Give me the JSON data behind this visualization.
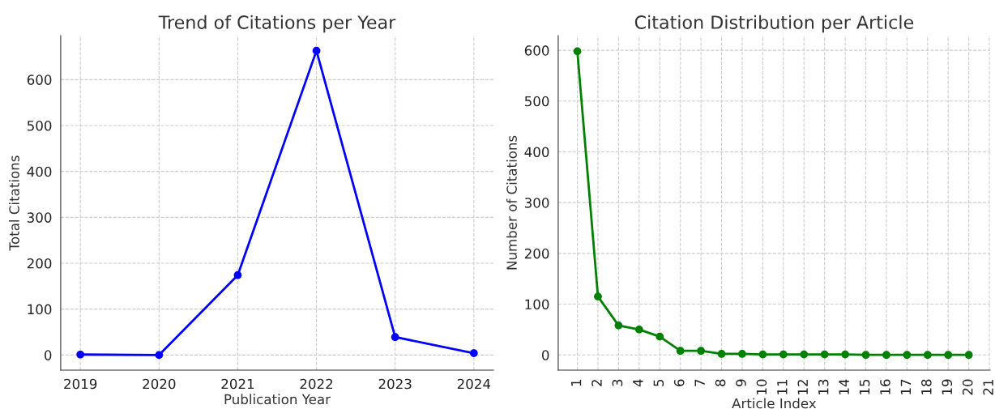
{
  "chart_data": [
    {
      "type": "line",
      "title": "Trend of Citations per Year",
      "xlabel": "Publication Year",
      "ylabel": "Total Citations",
      "x": [
        2019,
        2020,
        2021,
        2022,
        2023,
        2024
      ],
      "series": [
        {
          "color": "#0000ff",
          "values": [
            1,
            0,
            174,
            663,
            39,
            4
          ]
        }
      ],
      "xlim": [
        2018.75,
        2024.25
      ],
      "xticks": [
        2019,
        2020,
        2021,
        2022,
        2023,
        2024
      ],
      "ylim": [
        -33,
        696
      ],
      "yticks": [
        0,
        100,
        200,
        300,
        400,
        500,
        600
      ],
      "grid": true,
      "marker": "circle",
      "line_style": "solid"
    },
    {
      "type": "line",
      "title": "Citation Distribution per Article",
      "xlabel": "Article Index",
      "ylabel": "Number of Citations",
      "x": [
        1,
        2,
        3,
        4,
        5,
        6,
        7,
        8,
        9,
        10,
        11,
        12,
        13,
        14,
        15,
        16,
        17,
        18,
        19,
        20
      ],
      "series": [
        {
          "color": "#008000",
          "values": [
            598,
            115,
            58,
            50,
            36,
            8,
            8,
            2,
            2,
            1,
            1,
            1,
            1,
            1,
            0,
            0,
            0,
            0,
            0,
            0
          ]
        }
      ],
      "xlim": [
        0.07,
        21.03
      ],
      "xticks": [
        1,
        2,
        3,
        4,
        5,
        6,
        7,
        8,
        9,
        10,
        11,
        12,
        13,
        14,
        15,
        16,
        17,
        18,
        19,
        20,
        21
      ],
      "ylim": [
        -30,
        629
      ],
      "yticks": [
        0,
        100,
        200,
        300,
        400,
        500,
        600
      ],
      "grid": true,
      "marker": "circle",
      "line_style": "solid"
    }
  ]
}
